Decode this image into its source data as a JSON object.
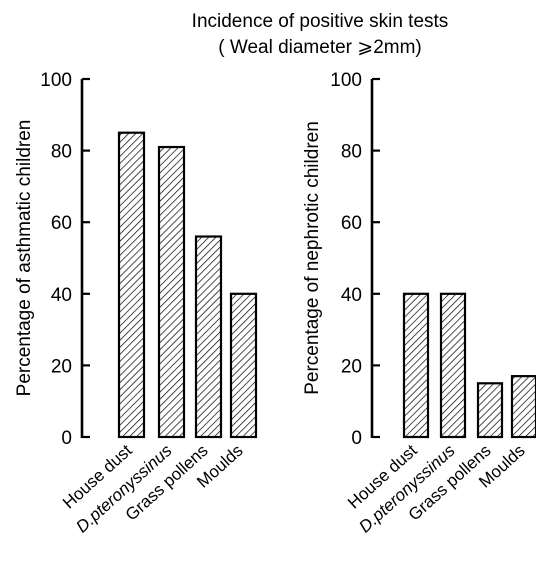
{
  "chart_data": {
    "title_line1": "Incidence of positive skin tests",
    "title_line2": "( Weal diameter ⩾2mm)",
    "panels": [
      {
        "type": "bar",
        "ylabel": "Percentage of asthmatic children",
        "categories": [
          "House dust",
          "D.pteronyssinus",
          "Grass pollens",
          "Moulds"
        ],
        "values": [
          85,
          81,
          56,
          40
        ],
        "ylim": [
          0,
          100
        ],
        "yticks": [
          0,
          20,
          40,
          60,
          80,
          100
        ],
        "grid": false
      },
      {
        "type": "bar",
        "ylabel": "Percentage of nephrotic children",
        "categories": [
          "House dust",
          "D.pteronyssinus",
          "Grass pollens",
          "Moulds"
        ],
        "values": [
          40,
          40,
          15,
          17
        ],
        "ylim": [
          0,
          100
        ],
        "yticks": [
          0,
          20,
          40,
          60,
          80,
          100
        ],
        "grid": false
      }
    ],
    "bar_fill": "hatched",
    "bar_stroke": "#000000"
  }
}
